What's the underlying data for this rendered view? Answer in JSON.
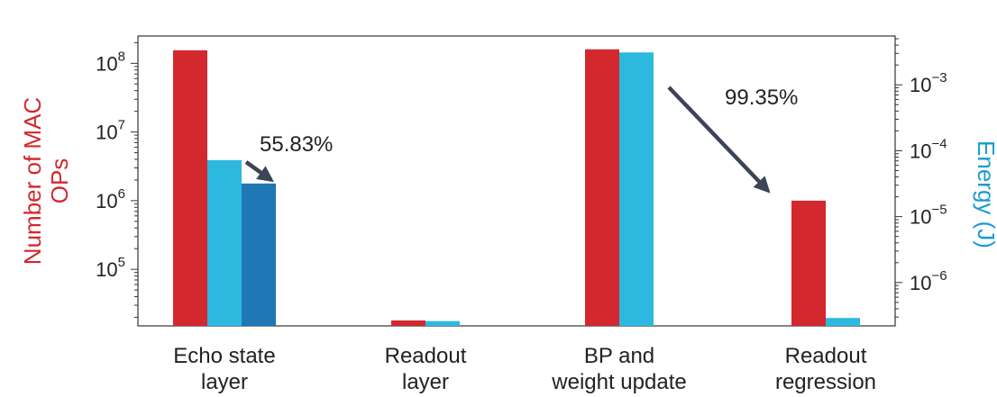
{
  "chart_data": {
    "type": "bar",
    "categories": [
      [
        "Echo state",
        "layer"
      ],
      [
        "Readout",
        "layer"
      ],
      [
        "BP and",
        "weight update"
      ],
      [
        "Readout",
        "regression"
      ]
    ],
    "ylabel": [
      "Number of MAC",
      "OPs"
    ],
    "y2label": "Energy (J)",
    "yscale": "log",
    "y2scale": "log",
    "ylim": [
      15000,
      250000000
    ],
    "y2lim": [
      2.2e-07,
      0.0055
    ],
    "yticks": [
      {
        "base": "10",
        "exp": "5",
        "value": 100000
      },
      {
        "base": "10",
        "exp": "6",
        "value": 1000000
      },
      {
        "base": "10",
        "exp": "7",
        "value": 10000000
      },
      {
        "base": "10",
        "exp": "8",
        "value": 100000000
      }
    ],
    "y2ticks": [
      {
        "base": "10",
        "exp": "−6",
        "value": 1e-06
      },
      {
        "base": "10",
        "exp": "−5",
        "value": 1e-05
      },
      {
        "base": "10",
        "exp": "−4",
        "value": 0.0001
      },
      {
        "base": "10",
        "exp": "−3",
        "value": 0.001
      }
    ],
    "series": [
      {
        "axis": "left",
        "color": "#d2282e",
        "values": [
          155000000,
          18000,
          160000000,
          1000000
        ]
      },
      {
        "axis": "right",
        "color": "#2db8e0",
        "values": [
          7.2e-05,
          2.6e-07,
          0.0031,
          2.9e-07
        ]
      },
      {
        "axis": "right",
        "color": "#1f77b4",
        "values": [
          3.18e-05,
          null,
          null,
          null
        ]
      }
    ],
    "annotations": [
      {
        "text": "55.83%",
        "category": 0
      },
      {
        "text": "99.35%",
        "category": 2
      }
    ],
    "grid": false,
    "legend": "none"
  }
}
